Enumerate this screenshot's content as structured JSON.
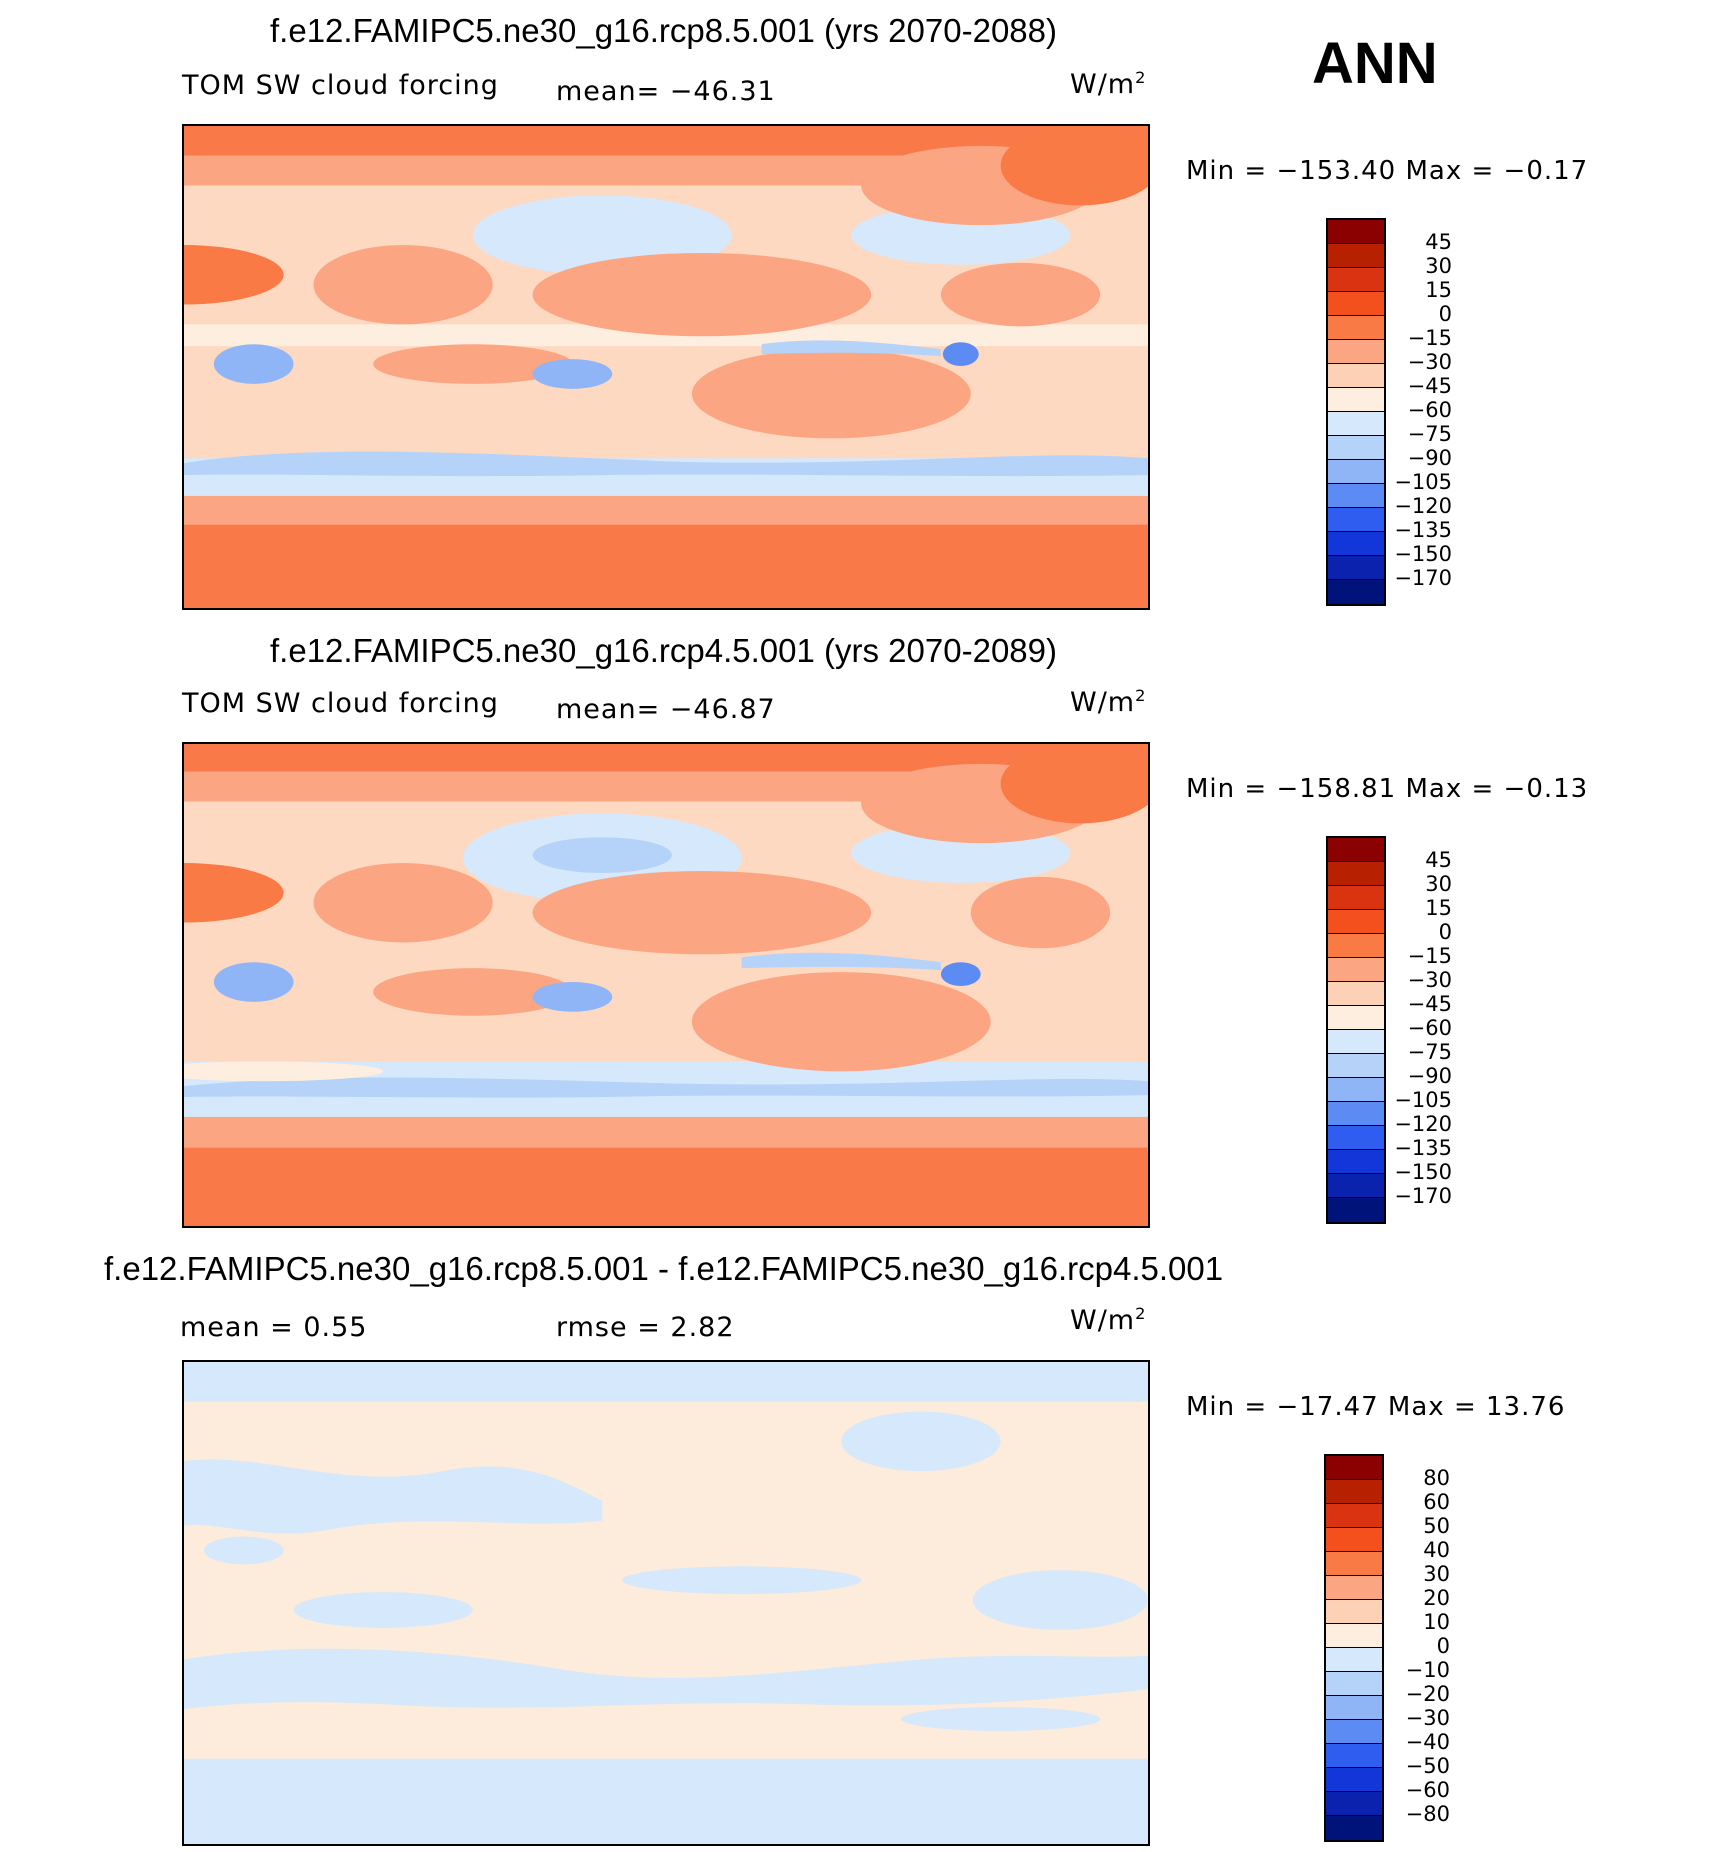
{
  "season": "ANN",
  "panels": [
    {
      "title": "f.e12.FAMIPC5.ne30_g16.rcp8.5.001 (yrs 2070-2088)",
      "variable": "TOM SW cloud forcing",
      "mean_text": "mean= −46.31",
      "units_base": "W/m",
      "units_exp": "2",
      "minmax": "Min = −153.40 Max =  −0.17",
      "colorbar": {
        "labels": [
          "45",
          "30",
          "15",
          "0",
          "−15",
          "−30",
          "−45",
          "−60",
          "−75",
          "−90",
          "−105",
          "−120",
          "−135",
          "−150",
          "−170"
        ],
        "colors": [
          "#8b0000",
          "#b72000",
          "#d93311",
          "#f4501e",
          "#fa7a45",
          "#fca583",
          "#fdd1b5",
          "#feeee0",
          "#d6e8fb",
          "#b5d3f9",
          "#8fb5f6",
          "#5d8bf4",
          "#2e5df0",
          "#1236d8",
          "#0a22ae",
          "#00137a"
        ]
      }
    },
    {
      "title": "f.e12.FAMIPC5.ne30_g16.rcp4.5.001 (yrs 2070-2089)",
      "variable": "TOM SW cloud forcing",
      "mean_text": "mean= −46.87",
      "units_base": "W/m",
      "units_exp": "2",
      "minmax": "Min = −158.81 Max =  −0.13",
      "colorbar": {
        "labels": [
          "45",
          "30",
          "15",
          "0",
          "−15",
          "−30",
          "−45",
          "−60",
          "−75",
          "−90",
          "−105",
          "−120",
          "−135",
          "−150",
          "−170"
        ],
        "colors": [
          "#8b0000",
          "#b72000",
          "#d93311",
          "#f4501e",
          "#fa7a45",
          "#fca583",
          "#fdd1b5",
          "#feeee0",
          "#d6e8fb",
          "#b5d3f9",
          "#8fb5f6",
          "#5d8bf4",
          "#2e5df0",
          "#1236d8",
          "#0a22ae",
          "#00137a"
        ]
      }
    },
    {
      "title": "f.e12.FAMIPC5.ne30_g16.rcp8.5.001 - f.e12.FAMIPC5.ne30_g16.rcp4.5.001",
      "mean_text": "mean =   0.55",
      "rmse_text": "rmse =   2.82",
      "units_base": "W/m",
      "units_exp": "2",
      "minmax": "Min = −17.47 Max =   13.76",
      "colorbar": {
        "labels": [
          "80",
          "60",
          "50",
          "40",
          "30",
          "20",
          "10",
          "0",
          "−10",
          "−20",
          "−30",
          "−40",
          "−50",
          "−60",
          "−80"
        ],
        "colors": [
          "#8b0000",
          "#b72000",
          "#d93311",
          "#f4501e",
          "#fa7a45",
          "#fca583",
          "#fdd1b5",
          "#feeee0",
          "#d6e8fb",
          "#b5d3f9",
          "#8fb5f6",
          "#5d8bf4",
          "#2e5df0",
          "#1236d8",
          "#0a22ae",
          "#00137a"
        ]
      }
    }
  ]
}
